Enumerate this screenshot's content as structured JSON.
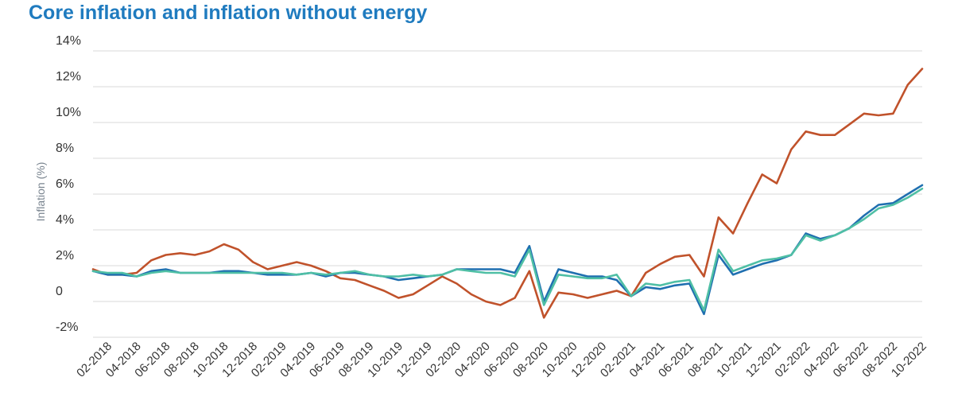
{
  "chart_data": {
    "type": "line",
    "title": "Core inflation and inflation without energy",
    "ylabel": "Inflation (%)",
    "xlabel": "",
    "ylim": [
      -2,
      14
    ],
    "yticks": [
      -2,
      0,
      2,
      4,
      6,
      8,
      10,
      12,
      14
    ],
    "ytick_labels": [
      "-2%",
      "0",
      "2%",
      "4%",
      "6%",
      "8%",
      "10%",
      "12%",
      "14%"
    ],
    "grid": true,
    "legend": "none",
    "x": [
      "01-2018",
      "02-2018",
      "03-2018",
      "04-2018",
      "05-2018",
      "06-2018",
      "07-2018",
      "08-2018",
      "09-2018",
      "10-2018",
      "11-2018",
      "12-2018",
      "01-2019",
      "02-2019",
      "03-2019",
      "04-2019",
      "05-2019",
      "06-2019",
      "07-2019",
      "08-2019",
      "09-2019",
      "10-2019",
      "11-2019",
      "12-2019",
      "01-2020",
      "02-2020",
      "03-2020",
      "04-2020",
      "05-2020",
      "06-2020",
      "07-2020",
      "08-2020",
      "09-2020",
      "10-2020",
      "11-2020",
      "12-2020",
      "01-2021",
      "02-2021",
      "03-2021",
      "04-2021",
      "05-2021",
      "06-2021",
      "07-2021",
      "08-2021",
      "09-2021",
      "10-2021",
      "11-2021",
      "12-2021",
      "01-2022",
      "02-2022",
      "03-2022",
      "04-2022",
      "05-2022",
      "06-2022",
      "07-2022",
      "08-2022",
      "09-2022",
      "10-2022"
    ],
    "xtick_labels": [
      "02-2018",
      "04-2018",
      "06-2018",
      "08-2018",
      "10-2018",
      "12-2018",
      "02-2019",
      "04-2019",
      "06-2019",
      "08-2019",
      "10-2019",
      "12-2019",
      "02-2020",
      "04-2020",
      "06-2020",
      "08-2020",
      "10-2020",
      "12-2020",
      "02-2021",
      "04-2021",
      "06-2021",
      "08-2021",
      "10-2021",
      "12-2021",
      "02-2022",
      "04-2022",
      "06-2022",
      "08-2022",
      "10-2022"
    ],
    "series": [
      {
        "color": "#c0522b",
        "values": [
          1.8,
          1.5,
          1.5,
          1.6,
          2.3,
          2.6,
          2.7,
          2.6,
          2.8,
          3.2,
          2.9,
          2.2,
          1.8,
          2.0,
          2.2,
          2.0,
          1.7,
          1.3,
          1.2,
          0.9,
          0.6,
          0.2,
          0.4,
          0.9,
          1.4,
          1.0,
          0.4,
          -0.0,
          -0.2,
          0.2,
          1.7,
          -0.9,
          0.5,
          0.4,
          0.2,
          0.4,
          0.6,
          0.3,
          1.6,
          2.1,
          2.5,
          2.6,
          1.4,
          4.7,
          3.8,
          5.5,
          7.1,
          6.6,
          8.5,
          9.5,
          9.3,
          9.3,
          9.9,
          10.5,
          10.4,
          10.5,
          12.1,
          13.0
        ]
      },
      {
        "color": "#1f6fb0",
        "values": [
          1.7,
          1.5,
          1.5,
          1.4,
          1.7,
          1.8,
          1.6,
          1.6,
          1.6,
          1.7,
          1.7,
          1.6,
          1.5,
          1.5,
          1.5,
          1.6,
          1.4,
          1.6,
          1.6,
          1.5,
          1.4,
          1.2,
          1.3,
          1.4,
          1.5,
          1.8,
          1.8,
          1.8,
          1.8,
          1.6,
          3.1,
          0.0,
          1.8,
          1.6,
          1.4,
          1.4,
          1.2,
          0.3,
          0.8,
          0.7,
          0.9,
          1.0,
          -0.7,
          2.6,
          1.5,
          1.8,
          2.1,
          2.3,
          2.6,
          3.8,
          3.5,
          3.7,
          4.1,
          4.8,
          5.4,
          5.5,
          6.0,
          6.5
        ]
      },
      {
        "color": "#4fbfa5",
        "values": [
          1.7,
          1.6,
          1.6,
          1.4,
          1.6,
          1.7,
          1.6,
          1.6,
          1.6,
          1.6,
          1.6,
          1.6,
          1.6,
          1.6,
          1.5,
          1.6,
          1.5,
          1.6,
          1.7,
          1.5,
          1.4,
          1.4,
          1.5,
          1.4,
          1.5,
          1.8,
          1.7,
          1.6,
          1.6,
          1.4,
          2.9,
          -0.2,
          1.5,
          1.4,
          1.3,
          1.3,
          1.5,
          0.3,
          1.0,
          0.9,
          1.1,
          1.2,
          -0.5,
          2.9,
          1.7,
          2.0,
          2.3,
          2.4,
          2.6,
          3.7,
          3.4,
          3.7,
          4.1,
          4.6,
          5.2,
          5.4,
          5.8,
          6.3
        ]
      }
    ]
  }
}
